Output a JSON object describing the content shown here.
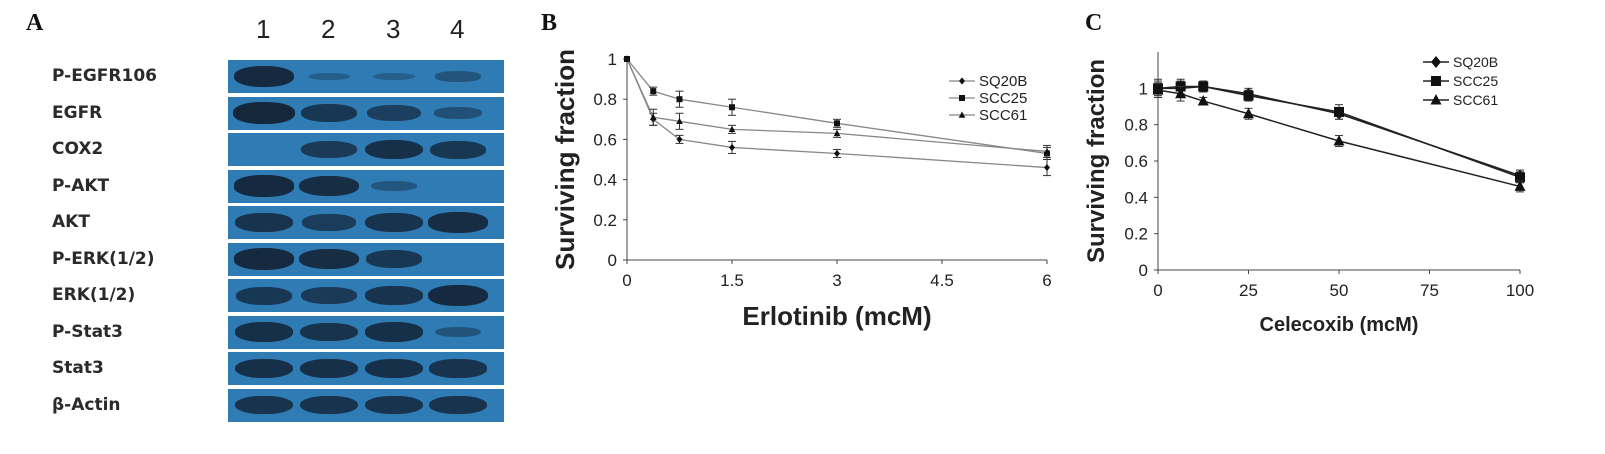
{
  "panels": {
    "a": "A",
    "b": "B",
    "c": "C"
  },
  "blot": {
    "lanes": [
      "1",
      "2",
      "3",
      "4"
    ],
    "rows": [
      {
        "label": "P-EGFR106",
        "bands": [
          0.95,
          0.12,
          0.1,
          0.28
        ]
      },
      {
        "label": "EGFR",
        "bands": [
          1.0,
          0.75,
          0.6,
          0.35
        ]
      },
      {
        "label": "COX2",
        "bands": [
          0.0,
          0.7,
          0.85,
          0.75
        ]
      },
      {
        "label": "P-AKT",
        "bands": [
          0.95,
          0.9,
          0.25,
          0.0
        ]
      },
      {
        "label": "AKT",
        "bands": [
          0.8,
          0.65,
          0.8,
          0.9
        ]
      },
      {
        "label": "P-ERK(1/2)",
        "bands": [
          0.95,
          0.9,
          0.75,
          0.0
        ]
      },
      {
        "label": "ERK(1/2)",
        "bands": [
          0.75,
          0.7,
          0.8,
          0.95
        ]
      },
      {
        "label": "P-Stat3",
        "bands": [
          0.85,
          0.8,
          0.85,
          0.3
        ]
      },
      {
        "label": "Stat3",
        "bands": [
          0.85,
          0.85,
          0.85,
          0.8
        ]
      },
      {
        "label": "β-Actin",
        "bands": [
          0.8,
          0.8,
          0.8,
          0.8
        ]
      }
    ]
  },
  "chart_data": [
    {
      "type": "line",
      "xlabel": "Erlotinib (mcM)",
      "ylabel": "Surviving fraction",
      "xlim": [
        0,
        6
      ],
      "ylim": [
        0,
        1
      ],
      "xticks": [
        "0",
        "1.5",
        "3",
        "4.5",
        "6"
      ],
      "yticks": [
        "0",
        "0.2",
        "0.4",
        "0.6",
        "0.8",
        "1"
      ],
      "legend_position": "top-right",
      "series": [
        {
          "name": "SQ20B",
          "marker": "diamond",
          "x": [
            0,
            0.375,
            0.75,
            1.5,
            3,
            6
          ],
          "values": [
            1.0,
            0.7,
            0.6,
            0.56,
            0.53,
            0.46
          ],
          "err": [
            0,
            0.03,
            0.02,
            0.03,
            0.02,
            0.04
          ]
        },
        {
          "name": "SCC25",
          "marker": "square",
          "x": [
            0,
            0.375,
            0.75,
            1.5,
            3,
            6
          ],
          "values": [
            1.0,
            0.84,
            0.8,
            0.76,
            0.68,
            0.53
          ],
          "err": [
            0,
            0.02,
            0.04,
            0.04,
            0.02,
            0.03
          ]
        },
        {
          "name": "SCC61",
          "marker": "triangle",
          "x": [
            0,
            0.375,
            0.75,
            1.5,
            3,
            6
          ],
          "values": [
            1.0,
            0.71,
            0.69,
            0.65,
            0.63,
            0.54
          ],
          "err": [
            0,
            0.04,
            0.04,
            0.02,
            0.02,
            0.03
          ]
        }
      ]
    },
    {
      "type": "line",
      "xlabel": "Celecoxib (mcM)",
      "ylabel": "Surviving fraction",
      "xlim": [
        0,
        100
      ],
      "ylim": [
        0,
        1.2
      ],
      "xticks": [
        "0",
        "25",
        "50",
        "75",
        "100"
      ],
      "yticks": [
        "0",
        "0.2",
        "0.4",
        "0.6",
        "0.8",
        "1"
      ],
      "legend_position": "top-right",
      "series": [
        {
          "name": "SQ20B",
          "marker": "diamond",
          "x": [
            0,
            6.25,
            12.5,
            25,
            50,
            100
          ],
          "values": [
            1.0,
            1.0,
            1.01,
            0.97,
            0.86,
            0.52
          ],
          "err": [
            0.05,
            0.04,
            0.03,
            0.03,
            0.03,
            0.03
          ]
        },
        {
          "name": "SCC25",
          "marker": "square",
          "x": [
            0,
            6.25,
            12.5,
            25,
            50,
            100
          ],
          "values": [
            1.0,
            1.01,
            1.01,
            0.96,
            0.87,
            0.51
          ],
          "err": [
            0.04,
            0.04,
            0.03,
            0.03,
            0.04,
            0.03
          ]
        },
        {
          "name": "SCC61",
          "marker": "triangle",
          "x": [
            0,
            6.25,
            12.5,
            25,
            50,
            100
          ],
          "values": [
            0.99,
            0.97,
            0.93,
            0.86,
            0.71,
            0.46
          ],
          "err": [
            0.04,
            0.04,
            0.02,
            0.03,
            0.03,
            0.03
          ]
        }
      ]
    }
  ]
}
